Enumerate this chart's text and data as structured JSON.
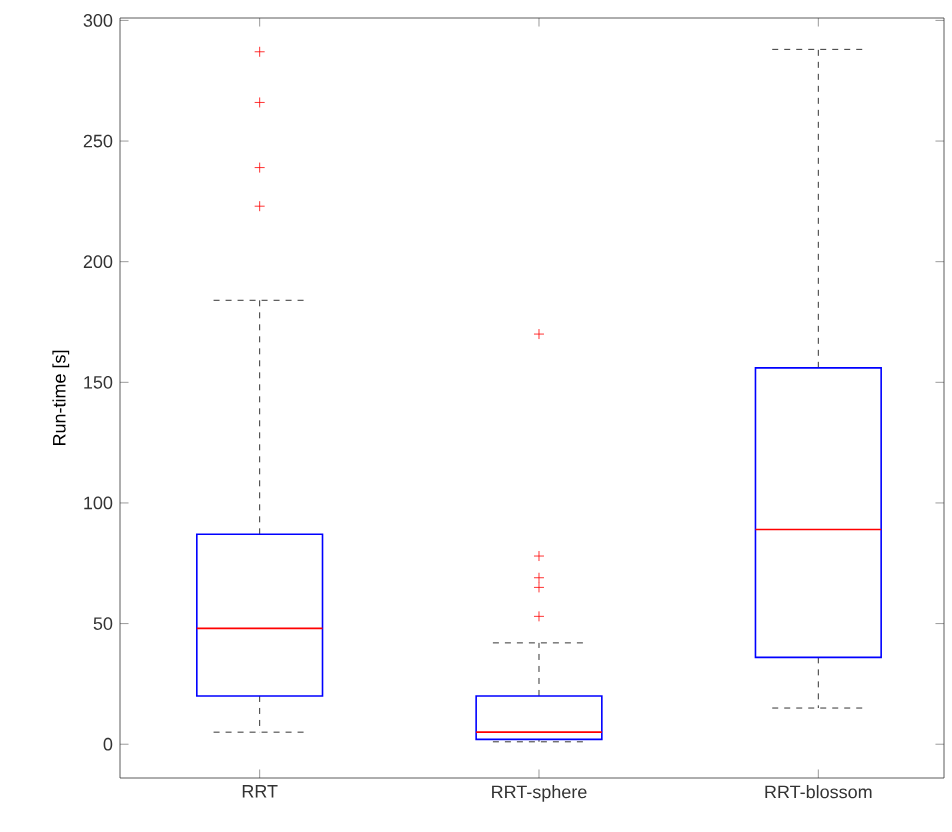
{
  "chart_data": {
    "type": "box",
    "ylabel": "Run-time [s]",
    "categories": [
      "RRT",
      "RRT-sphere",
      "RRT-blossom"
    ],
    "color": "#0000ff",
    "boxes": [
      {
        "low": 5,
        "q1": 20,
        "median": 48,
        "q3": 87,
        "high": 184,
        "outliers": [
          287,
          266,
          239,
          223
        ]
      },
      {
        "low": 1,
        "q1": 2,
        "median": 5,
        "q3": 20,
        "high": 42,
        "outliers": [
          170,
          78,
          69,
          65,
          53
        ]
      },
      {
        "low": 15,
        "q1": 36,
        "median": 89,
        "q3": 156,
        "high": 288
      }
    ],
    "ylim": [
      -14,
      301
    ],
    "yticks": [
      0,
      50,
      100,
      150,
      200,
      250,
      300
    ],
    "marker": "cross",
    "grid": false
  }
}
